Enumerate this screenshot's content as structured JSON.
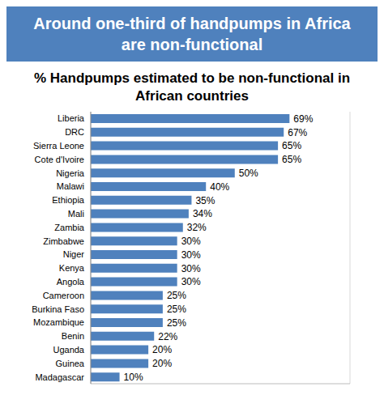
{
  "chart_data": {
    "type": "bar",
    "title": "Around one-third of handpumps in Africa are non-functional",
    "subtitle": "% Handpumps estimated to be non-functional in African countries",
    "orientation": "horizontal",
    "categories": [
      "Liberia",
      "DRC",
      "Sierra Leone",
      "Cote d'Ivoire",
      "Nigeria",
      "Malawi",
      "Ethiopia",
      "Mali",
      "Zambia",
      "Zimbabwe",
      "Niger",
      "Kenya",
      "Angola",
      "Cameroon",
      "Burkina Faso",
      "Mozambique",
      "Benin",
      "Uganda",
      "Guinea",
      "Madagascar"
    ],
    "values": [
      69,
      67,
      65,
      65,
      50,
      40,
      35,
      34,
      32,
      30,
      30,
      30,
      30,
      25,
      25,
      25,
      22,
      20,
      20,
      10
    ],
    "value_labels": [
      "69%",
      "67%",
      "65%",
      "65%",
      "50%",
      "40%",
      "35%",
      "34%",
      "32%",
      "30%",
      "30%",
      "30%",
      "30%",
      "25%",
      "25%",
      "25%",
      "22%",
      "20%",
      "20%",
      "10%"
    ],
    "color": "#4f81bd",
    "xlim": [
      0,
      90
    ],
    "xticks": [
      0,
      10,
      20,
      30,
      40,
      50,
      60,
      70,
      80,
      90
    ],
    "grid": true,
    "data_labels": true,
    "tick_labels": false
  }
}
